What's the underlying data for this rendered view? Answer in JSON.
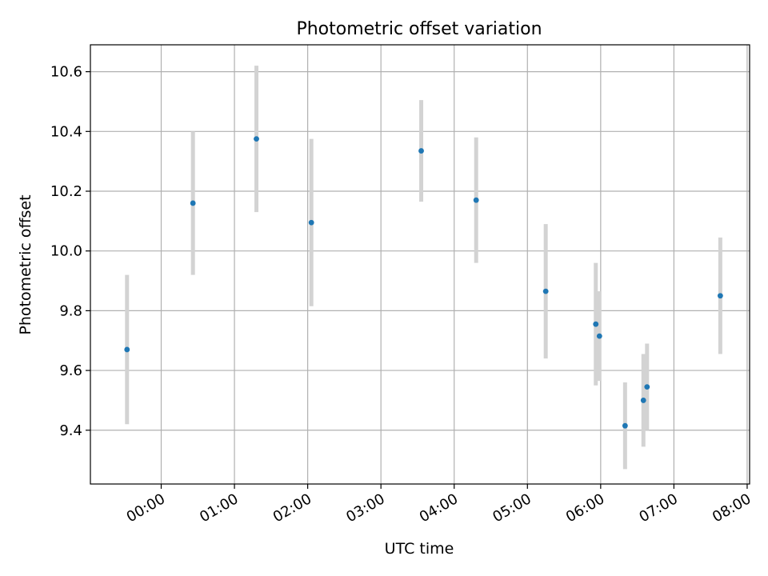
{
  "chart_data": {
    "type": "scatter",
    "title": "Photometric offset variation",
    "xlabel": "UTC time",
    "ylabel": "Photometric offset",
    "x_unit": "hours UTC",
    "xlim": [
      "23:02",
      "08:02"
    ],
    "ylim": [
      9.22,
      10.69
    ],
    "x_ticks": [
      "00:00",
      "01:00",
      "02:00",
      "03:00",
      "04:00",
      "05:00",
      "06:00",
      "07:00",
      "08:00"
    ],
    "y_ticks": [
      "9.4",
      "9.6",
      "9.8",
      "10.0",
      "10.2",
      "10.4",
      "10.6"
    ],
    "grid": true,
    "colors": {
      "point": "#1f77b4",
      "errorbar": "#d3d3d3",
      "grid": "#b0b0b0"
    },
    "series": [
      {
        "points": [
          {
            "x": "23:32",
            "y": 9.67,
            "err": 0.25
          },
          {
            "x": "00:26",
            "y": 10.16,
            "err": 0.24
          },
          {
            "x": "01:18",
            "y": 10.375,
            "err": 0.245
          },
          {
            "x": "02:03",
            "y": 10.095,
            "err": 0.28
          },
          {
            "x": "03:33",
            "y": 10.335,
            "err": 0.17
          },
          {
            "x": "04:18",
            "y": 10.17,
            "err": 0.21
          },
          {
            "x": "05:15",
            "y": 9.865,
            "err": 0.225
          },
          {
            "x": "05:56",
            "y": 9.755,
            "err": 0.205
          },
          {
            "x": "05:59",
            "y": 9.715,
            "err": 0.15
          },
          {
            "x": "06:20",
            "y": 9.415,
            "err": 0.145
          },
          {
            "x": "06:35",
            "y": 9.5,
            "err": 0.155
          },
          {
            "x": "06:38",
            "y": 9.545,
            "err": 0.145
          },
          {
            "x": "07:38",
            "y": 9.85,
            "err": 0.195
          }
        ]
      }
    ]
  }
}
